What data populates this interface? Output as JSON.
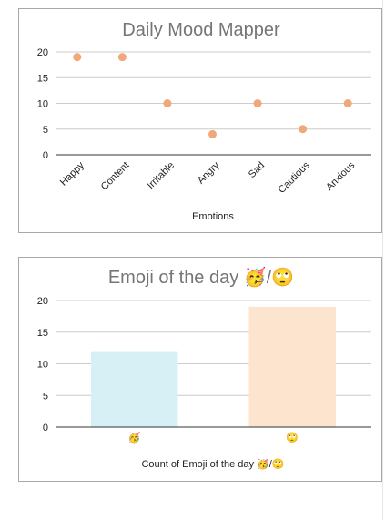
{
  "chart_data": [
    {
      "type": "scatter",
      "title": "Daily Mood Mapper",
      "xlabel": "Emotions",
      "ylabel": "",
      "categories": [
        "Happy",
        "Content",
        "Irritable",
        "Angry",
        "Sad",
        "Cautious",
        "Anxious"
      ],
      "values": [
        19,
        19,
        10,
        4,
        10,
        5,
        10
      ],
      "yticks": [
        "0",
        "5",
        "10",
        "15",
        "20"
      ],
      "ylim": [
        0,
        20
      ],
      "grid": true,
      "legend": "none",
      "color": "#f0a77a"
    },
    {
      "type": "bar",
      "title": "Emoji of the day 🥳/🙄",
      "xlabel": "Count of Emoji of the day 🥳/🙄",
      "ylabel": "",
      "categories": [
        "🥳",
        "🙄"
      ],
      "values": [
        12,
        19
      ],
      "yticks": [
        "0",
        "5",
        "10",
        "15",
        "20"
      ],
      "ylim": [
        0,
        20
      ],
      "grid": true,
      "legend": "none",
      "colors": [
        "#d6f0f6",
        "#fde4cf"
      ]
    }
  ]
}
